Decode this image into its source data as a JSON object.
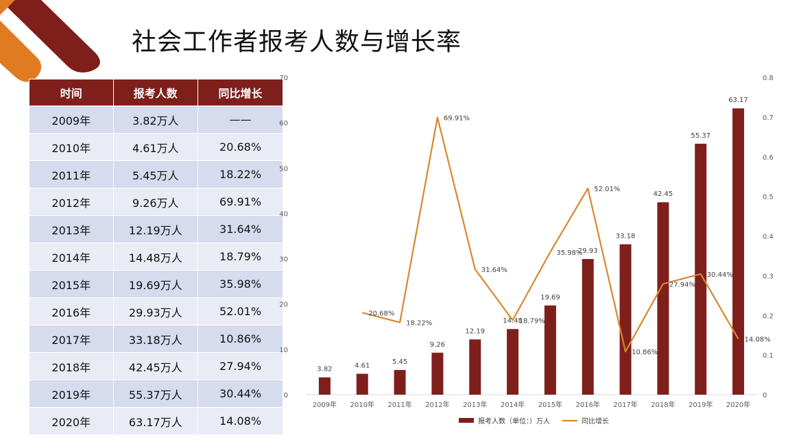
{
  "title": "社会工作者报考人数与增长率",
  "table": {
    "headers": [
      "时间",
      "报考人数",
      "同比增长"
    ],
    "rows": [
      [
        "2009年",
        "3.82万人",
        "——"
      ],
      [
        "2010年",
        "4.61万人",
        "20.68%"
      ],
      [
        "2011年",
        "5.45万人",
        "18.22%"
      ],
      [
        "2012年",
        "9.26万人",
        "69.91%"
      ],
      [
        "2013年",
        "12.19万人",
        "31.64%"
      ],
      [
        "2014年",
        "14.48万人",
        "18.79%"
      ],
      [
        "2015年",
        "19.69万人",
        "35.98%"
      ],
      [
        "2016年",
        "29.93万人",
        "52.01%"
      ],
      [
        "2017年",
        "33.18万人",
        "10.86%"
      ],
      [
        "2018年",
        "42.45万人",
        "27.94%"
      ],
      [
        "2019年",
        "55.37万人",
        "30.44%"
      ],
      [
        "2020年",
        "63.17万人",
        "14.08%"
      ]
    ]
  },
  "colors": {
    "deco_primary": "#7e1f1c",
    "deco_accent": "#e07b22",
    "bar": "#7e1f1c",
    "line": "#d8862e",
    "header_bg": "#7e1f1c"
  },
  "chart_data": {
    "type": "bar",
    "categories": [
      "2009年",
      "2010年",
      "2011年",
      "2012年",
      "2013年",
      "2014年",
      "2015年",
      "2016年",
      "2017年",
      "2018年",
      "2019年",
      "2020年"
    ],
    "series": [
      {
        "name": "报考人数（单位：）万人",
        "type": "bar",
        "axis": "left",
        "values": [
          3.82,
          4.61,
          5.45,
          9.26,
          12.19,
          14.48,
          19.69,
          29.93,
          33.18,
          42.45,
          55.37,
          63.17
        ],
        "labels": [
          "3.82",
          "4.61",
          "5.45",
          "9.26",
          "12.19",
          "14.48",
          "19.69",
          "29.93",
          "33.18",
          "42.45",
          "55.37",
          "63.17"
        ]
      },
      {
        "name": "同比增长",
        "type": "line",
        "axis": "right",
        "values": [
          null,
          0.2068,
          0.1822,
          0.6991,
          0.3164,
          0.1879,
          0.3598,
          0.5201,
          0.1086,
          0.2794,
          0.3044,
          0.1408
        ],
        "labels": [
          "",
          "20.68%",
          "18.22%",
          "69.91%",
          "31.64%",
          "18.79%",
          "35.98%",
          "52.01%",
          "10.86%",
          "27.94%",
          "30.44%",
          "14.08%"
        ]
      }
    ],
    "y_left": {
      "min": 0,
      "max": 70,
      "ticks": [
        "0",
        "10",
        "20",
        "30",
        "40",
        "50",
        "60",
        "70"
      ]
    },
    "y_right": {
      "min": 0,
      "max": 0.8,
      "ticks": [
        "0",
        "0.1",
        "0.2",
        "0.3",
        "0.4",
        "0.5",
        "0.6",
        "0.7",
        "0.8"
      ]
    },
    "grid": false,
    "legend_position": "bottom"
  }
}
